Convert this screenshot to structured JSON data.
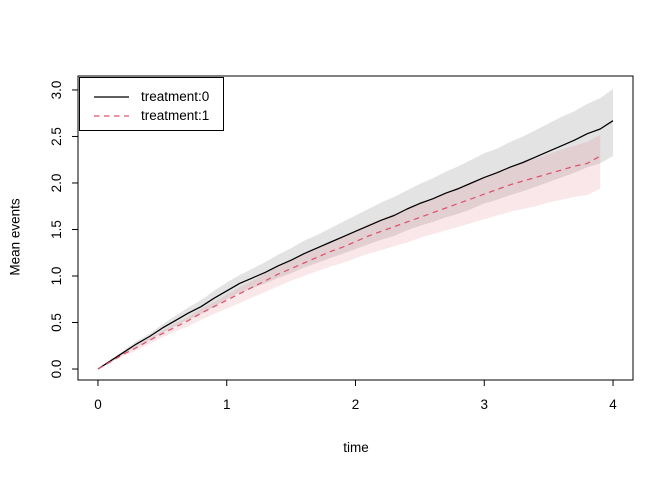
{
  "figure": {
    "background_color": "#ffffff"
  },
  "chart_data": {
    "type": "line",
    "title": "",
    "xlabel": "time",
    "ylabel": "Mean events",
    "xlim": [
      -0.155,
      4.155
    ],
    "ylim": [
      -0.118,
      3.15
    ],
    "x_ticks": [
      0,
      1,
      2,
      3,
      4
    ],
    "x_tick_labels": [
      "0",
      "1",
      "2",
      "3",
      "4"
    ],
    "y_ticks": [
      0.0,
      0.5,
      1.0,
      1.5,
      2.0,
      2.5,
      3.0
    ],
    "y_tick_labels": [
      "0.0",
      "0.5",
      "1.0",
      "1.5",
      "2.0",
      "2.5",
      "3.0"
    ],
    "grid": false,
    "legend_position": "topleft",
    "axis_color": "#000000",
    "series": [
      {
        "name": "treatment:0",
        "color": "#000000",
        "linestyle": "solid",
        "band_color": "rgba(0,0,0,0.11)",
        "x": [
          0,
          0.1,
          0.2,
          0.3,
          0.4,
          0.5,
          0.6,
          0.7,
          0.8,
          0.9,
          1.0,
          1.1,
          1.2,
          1.3,
          1.4,
          1.5,
          1.6,
          1.7,
          1.8,
          1.9,
          2.0,
          2.1,
          2.2,
          2.3,
          2.4,
          2.5,
          2.6,
          2.7,
          2.8,
          2.9,
          3.0,
          3.1,
          3.2,
          3.3,
          3.4,
          3.5,
          3.6,
          3.7,
          3.8,
          3.9,
          4.0
        ],
        "y": [
          0,
          0.09,
          0.18,
          0.27,
          0.35,
          0.44,
          0.52,
          0.6,
          0.67,
          0.76,
          0.84,
          0.92,
          0.98,
          1.04,
          1.11,
          1.17,
          1.24,
          1.3,
          1.36,
          1.42,
          1.48,
          1.54,
          1.6,
          1.65,
          1.72,
          1.78,
          1.83,
          1.89,
          1.94,
          2.0,
          2.06,
          2.11,
          2.17,
          2.22,
          2.28,
          2.34,
          2.4,
          2.46,
          2.53,
          2.58,
          2.67
        ],
        "ci_lower": [
          0,
          0.08,
          0.16,
          0.24,
          0.31,
          0.39,
          0.46,
          0.53,
          0.59,
          0.67,
          0.75,
          0.82,
          0.87,
          0.92,
          0.98,
          1.03,
          1.09,
          1.14,
          1.19,
          1.24,
          1.29,
          1.34,
          1.39,
          1.43,
          1.49,
          1.54,
          1.58,
          1.63,
          1.67,
          1.72,
          1.78,
          1.82,
          1.87,
          1.91,
          1.96,
          2.01,
          2.06,
          2.11,
          2.17,
          2.21,
          2.29
        ],
        "ci_upper": [
          0,
          0.1,
          0.2,
          0.3,
          0.38,
          0.48,
          0.57,
          0.66,
          0.74,
          0.84,
          0.93,
          1.01,
          1.08,
          1.15,
          1.23,
          1.3,
          1.38,
          1.44,
          1.51,
          1.58,
          1.65,
          1.72,
          1.79,
          1.85,
          1.92,
          1.99,
          2.05,
          2.12,
          2.18,
          2.25,
          2.32,
          2.37,
          2.44,
          2.5,
          2.57,
          2.64,
          2.71,
          2.77,
          2.85,
          2.91,
          3.01
        ]
      },
      {
        "name": "treatment:1",
        "color": "#DF536B",
        "linestyle": "dashed",
        "band_color": "rgba(223,83,107,0.14)",
        "x": [
          0,
          0.1,
          0.2,
          0.3,
          0.4,
          0.5,
          0.6,
          0.7,
          0.8,
          0.9,
          1.0,
          1.1,
          1.2,
          1.3,
          1.4,
          1.5,
          1.6,
          1.7,
          1.8,
          1.9,
          2.0,
          2.1,
          2.2,
          2.3,
          2.4,
          2.5,
          2.6,
          2.7,
          2.8,
          2.9,
          3.0,
          3.1,
          3.2,
          3.3,
          3.4,
          3.5,
          3.6,
          3.7,
          3.8,
          3.9
        ],
        "y": [
          0,
          0.08,
          0.16,
          0.23,
          0.31,
          0.38,
          0.45,
          0.52,
          0.6,
          0.67,
          0.74,
          0.81,
          0.88,
          0.95,
          1.02,
          1.08,
          1.14,
          1.2,
          1.26,
          1.31,
          1.37,
          1.43,
          1.48,
          1.53,
          1.58,
          1.63,
          1.68,
          1.73,
          1.78,
          1.83,
          1.88,
          1.93,
          1.98,
          2.02,
          2.06,
          2.1,
          2.14,
          2.18,
          2.21,
          2.29
        ],
        "ci_lower": [
          0,
          0.07,
          0.14,
          0.2,
          0.27,
          0.34,
          0.4,
          0.46,
          0.53,
          0.59,
          0.65,
          0.71,
          0.77,
          0.83,
          0.89,
          0.95,
          1.0,
          1.05,
          1.1,
          1.14,
          1.19,
          1.24,
          1.28,
          1.32,
          1.36,
          1.41,
          1.45,
          1.49,
          1.53,
          1.57,
          1.61,
          1.65,
          1.69,
          1.72,
          1.75,
          1.79,
          1.82,
          1.85,
          1.87,
          1.94
        ],
        "ci_upper": [
          0,
          0.09,
          0.17,
          0.25,
          0.33,
          0.41,
          0.49,
          0.56,
          0.65,
          0.72,
          0.8,
          0.88,
          0.95,
          1.03,
          1.1,
          1.17,
          1.24,
          1.3,
          1.37,
          1.42,
          1.49,
          1.56,
          1.61,
          1.67,
          1.72,
          1.78,
          1.84,
          1.89,
          1.95,
          2.0,
          2.06,
          2.12,
          2.17,
          2.22,
          2.26,
          2.31,
          2.36,
          2.4,
          2.44,
          2.52
        ]
      }
    ]
  }
}
